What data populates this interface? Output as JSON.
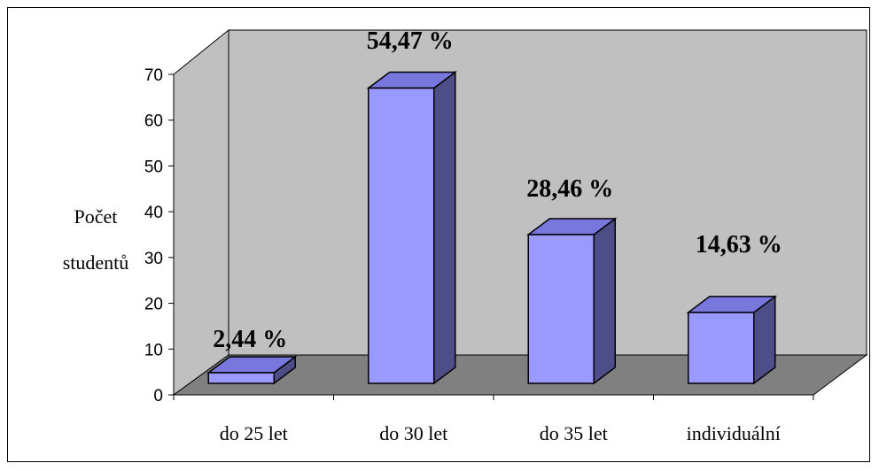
{
  "chart_data": {
    "type": "bar",
    "title": "",
    "xlabel": "",
    "ylabel_lines": [
      "Počet",
      "studentů"
    ],
    "categories": [
      "do 25 let",
      "do 30 let",
      "do 35 let",
      "individuální"
    ],
    "values": [
      3,
      67,
      35,
      18
    ],
    "data_labels": [
      "2,44 %",
      "54,47 %",
      "28,46 %",
      "14,63 %"
    ],
    "yticks": [
      "0",
      "10",
      "20",
      "30",
      "40",
      "50",
      "60",
      "70"
    ],
    "ylim": [
      0,
      70
    ],
    "grid": false,
    "legend": "none",
    "colors": {
      "bar_front": "#9999ff",
      "bar_top": "#7777dd",
      "bar_side": "#4d4d88",
      "back_wall": "#c0c0c0",
      "floor": "#808080"
    }
  }
}
